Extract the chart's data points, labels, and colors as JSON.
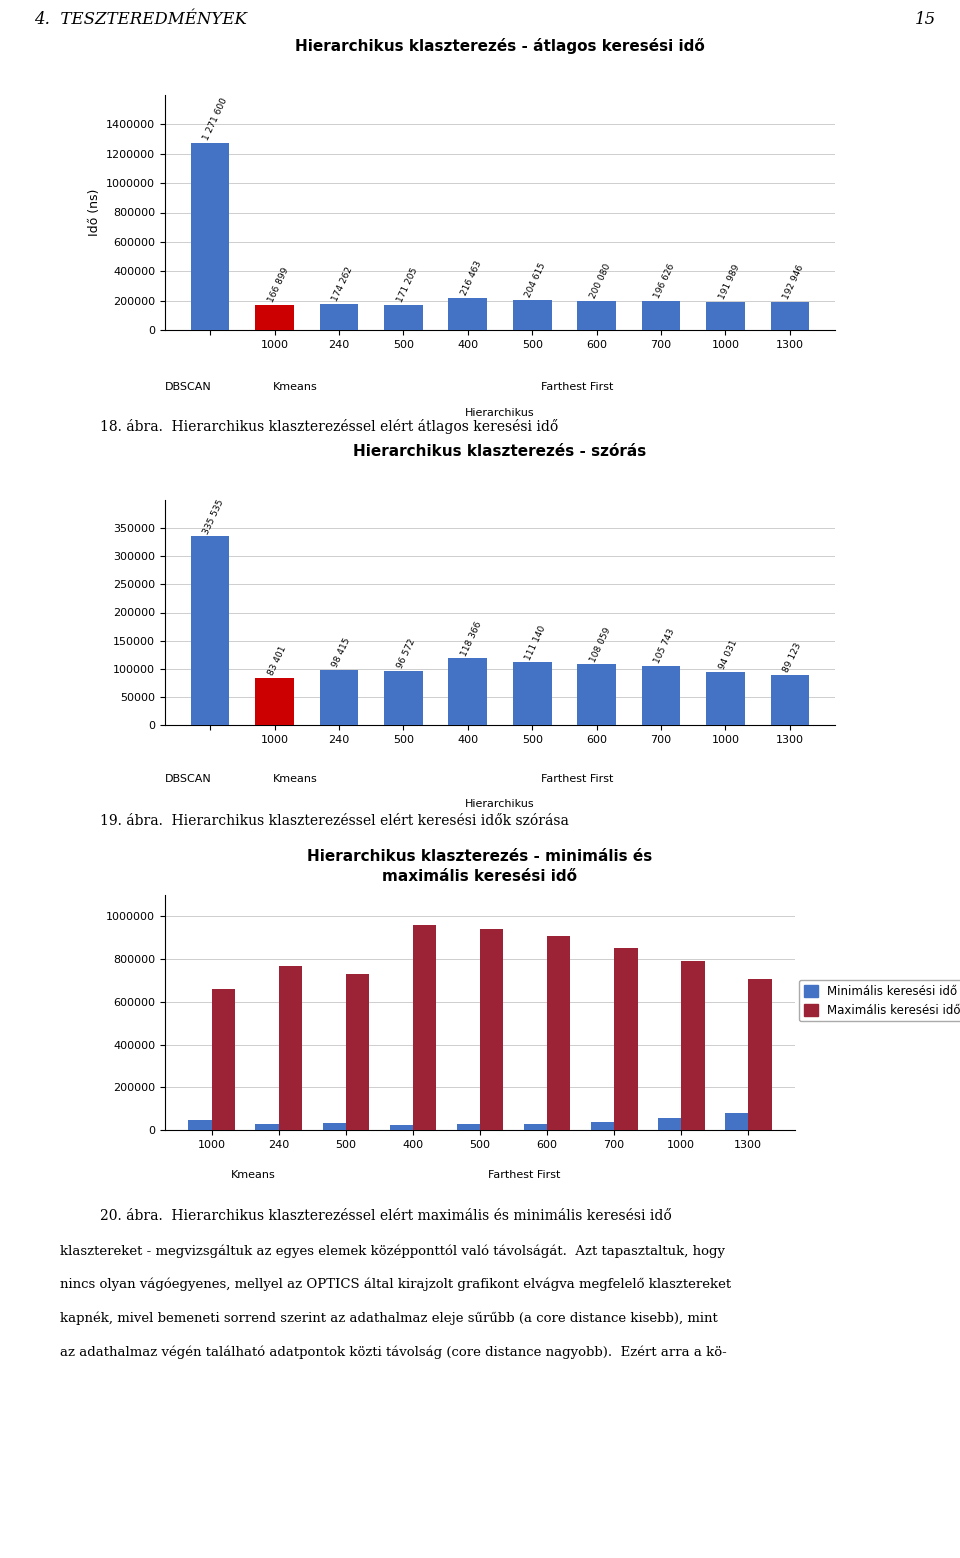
{
  "chart1": {
    "title": "Hierarchikus klaszterezés - átlagos keresési idő",
    "ylabel": "Idő (ns)",
    "categories": [
      "",
      "1000",
      "240",
      "500",
      "400",
      "500",
      "600",
      "700",
      "1000",
      "1300"
    ],
    "values": [
      1271600,
      166899,
      174262,
      171205,
      216463,
      204615,
      200080,
      196626,
      191989,
      192946
    ],
    "bar_labels": [
      "1 271 600",
      "166 899",
      "174 262",
      "171 205",
      "216 463",
      "204 615",
      "200 080",
      "196 626",
      "191 989",
      "192 946"
    ],
    "colors": [
      "#4472C4",
      "#CC0000",
      "#4472C4",
      "#4472C4",
      "#4472C4",
      "#4472C4",
      "#4472C4",
      "#4472C4",
      "#4472C4",
      "#4472C4"
    ],
    "ylim": [
      0,
      1600000
    ],
    "yticks": [
      0,
      200000,
      400000,
      600000,
      800000,
      1000000,
      1200000,
      1400000
    ],
    "group_labels": [
      [
        "DBSCAN",
        0.05
      ],
      [
        "Kmeans",
        0.22
      ],
      [
        "Farthest First",
        0.62
      ]
    ],
    "bottom_label": "Hierarchikus"
  },
  "chart2": {
    "title": "Hierarchikus klaszterezés - szórás",
    "ylabel": "",
    "categories": [
      "",
      "1000",
      "240",
      "500",
      "400",
      "500",
      "600",
      "700",
      "1000",
      "1300"
    ],
    "values": [
      335535,
      83401,
      98415,
      96572,
      118366,
      111140,
      108059,
      105743,
      94031,
      89123
    ],
    "bar_labels": [
      "335 535",
      "83 401",
      "98 415",
      "96 572",
      "118 366",
      "111 140",
      "108 059",
      "105 743",
      "94 031",
      "89 123"
    ],
    "colors": [
      "#4472C4",
      "#CC0000",
      "#4472C4",
      "#4472C4",
      "#4472C4",
      "#4472C4",
      "#4472C4",
      "#4472C4",
      "#4472C4",
      "#4472C4"
    ],
    "ylim": [
      0,
      400000
    ],
    "yticks": [
      0,
      50000,
      100000,
      150000,
      200000,
      250000,
      300000,
      350000
    ],
    "group_labels": [
      [
        "DBSCAN",
        0.05
      ],
      [
        "Kmeans",
        0.22
      ],
      [
        "Farthest First",
        0.62
      ]
    ],
    "bottom_label": "Hierarchikus"
  },
  "chart3": {
    "title": "Hierarchikus klaszterezés - minimális és\nmaximális keresési idő",
    "categories": [
      "1000",
      "240",
      "500",
      "400",
      "500",
      "600",
      "700",
      "1000",
      "1300"
    ],
    "min_values": [
      45000,
      28000,
      32000,
      25000,
      28000,
      30000,
      38000,
      55000,
      80000
    ],
    "max_values": [
      660000,
      770000,
      730000,
      960000,
      940000,
      910000,
      850000,
      790000,
      705000
    ],
    "min_color": "#4472C4",
    "max_color": "#9B2335",
    "ylim": [
      0,
      1100000
    ],
    "yticks": [
      0,
      200000,
      400000,
      600000,
      800000,
      1000000
    ],
    "group_labels": [
      [
        "Kmeans",
        0.14
      ],
      [
        "Farthest First",
        0.57
      ]
    ],
    "legend_min": "Minimális keresési idő",
    "legend_max": "Maximális keresési idő"
  },
  "page_header": "4.  TESZTEREDMÉNYEK",
  "page_number": "15",
  "caption1": "18. ábra.  Hierarchikus klaszterezéssel elért átlagos keresési idő",
  "caption2": "19. ábra.  Hierarchikus klaszterezéssel elért keresési idők szórása",
  "caption3": "20. ábra.  Hierarchikus klaszterezéssel elért maximális és minimális keresési idő",
  "footer_lines": [
    "klasztereket - megvizsgáltuk az egyes elemek középponttól való távolságát.  Azt tapasztaltuk, hogy",
    "nincs olyan vágóegyenes, mellyel az OPTICS által kirajzolt grafikont elvágva megfelelő klasztereket",
    "kapnék, mivel bemeneti sorrend szerint az adathalmaz eleje sűrűbb (a core distance kisebb), mint",
    "az adathalmaz végén található adatpontok közti távolság (core distance nagyobb).  Ezért arra a kö-"
  ]
}
